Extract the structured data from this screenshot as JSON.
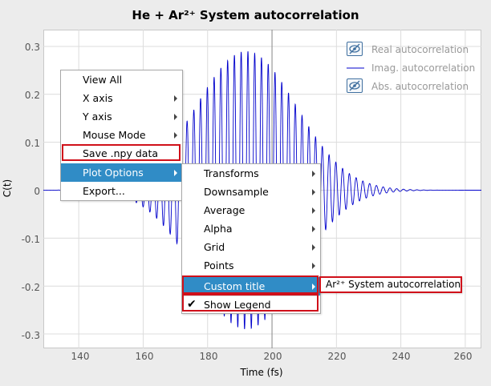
{
  "window": {
    "title": "He + Ar²⁺ System autocorrelation"
  },
  "chart_data": {
    "type": "line",
    "title": "He + Ar²⁺ System autocorrelation",
    "xlabel": "Time (fs)",
    "ylabel": "C(t)",
    "xlim": [
      129,
      265
    ],
    "ylim": [
      -0.33,
      0.335
    ],
    "x_ticks": [
      "140",
      "160",
      "180",
      "200",
      "220",
      "240",
      "260"
    ],
    "y_ticks": [
      "0.3",
      "0.2",
      "0.1",
      "0",
      "-0.1",
      "-0.2",
      "-0.3"
    ],
    "grid": true,
    "legend_placement": "top-right",
    "series": [
      {
        "name": "Real autocorrelation",
        "visible": false,
        "color": "#6a8fb5"
      },
      {
        "name": "Imag. autocorrelation",
        "visible": true,
        "color": "#0000cc"
      },
      {
        "name": "Abs. autocorrelation",
        "visible": false,
        "color": "#6a8fb5"
      }
    ],
    "imag_signal": {
      "description_free_params": true,
      "peak_time": 192,
      "peak_value": 0.29,
      "period": 2.1
    }
  },
  "legend": {
    "items": [
      {
        "label": "Real autocorrelation",
        "icon": "hidden-eye-icon"
      },
      {
        "label": "Imag. autocorrelation",
        "icon": "line-swatch"
      },
      {
        "label": "Abs. autocorrelation",
        "icon": "hidden-eye-icon"
      }
    ]
  },
  "context_menu": {
    "items": [
      "View All",
      "X axis",
      "Y axis",
      "Mouse Mode",
      "Save .npy data",
      "Plot Options",
      "Export..."
    ]
  },
  "plot_options_menu": {
    "items": [
      "Transforms",
      "Downsample",
      "Average",
      "Alpha",
      "Grid",
      "Points",
      "Custom title",
      "Show Legend"
    ],
    "show_legend_checked": true
  },
  "custom_title_field": {
    "value": "Ar²⁺ System autocorrelation"
  },
  "colors": {
    "selection": "#308cc6",
    "highlight": "#d0101a",
    "trace": "#0000cc"
  }
}
